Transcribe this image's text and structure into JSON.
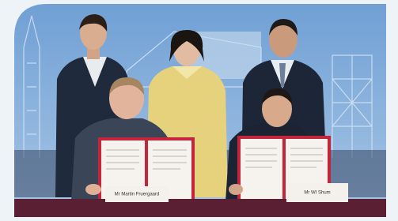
{
  "photo": {
    "name_cards": [
      "Mr Martin Fruergaard",
      "Mr WI Shum"
    ]
  }
}
